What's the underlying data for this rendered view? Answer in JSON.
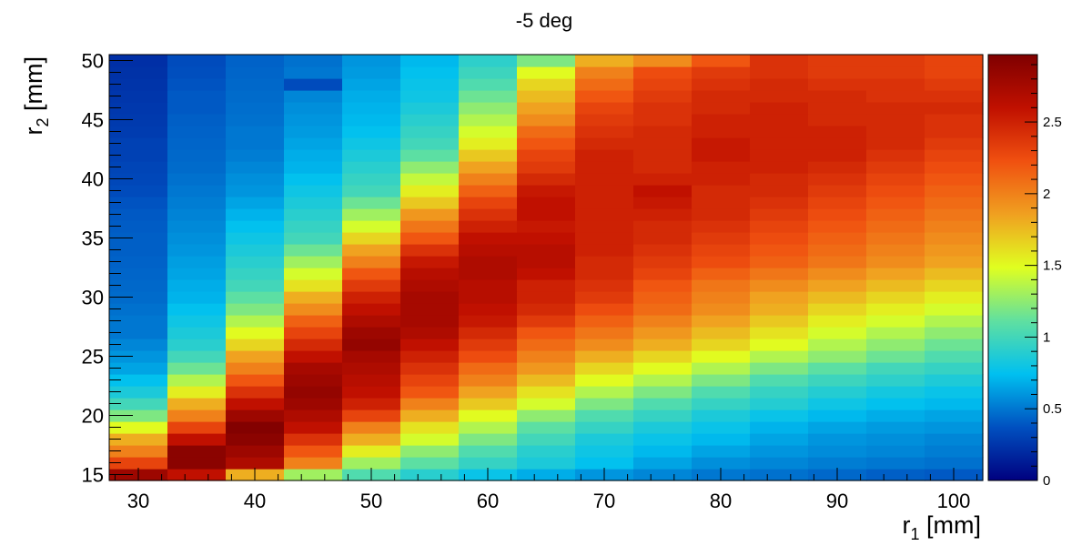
{
  "chart_data": {
    "type": "heatmap",
    "title": "-5 deg",
    "xlabel": {
      "main": "r",
      "sub": "1",
      "unit": " [mm]"
    },
    "ylabel": {
      "main": "r",
      "sub": "2",
      "unit": " [mm]"
    },
    "x_bin_edges": [
      27.5,
      102.5
    ],
    "x_bin_width": 5,
    "x_centers": [
      30,
      35,
      40,
      45,
      50,
      55,
      60,
      65,
      70,
      75,
      80,
      85,
      90,
      95,
      100
    ],
    "y_bin_edges": [
      14.5,
      50.5
    ],
    "y_bin_width": 1,
    "y_centers": [
      15,
      16,
      17,
      18,
      19,
      20,
      21,
      22,
      23,
      24,
      25,
      26,
      27,
      28,
      29,
      30,
      31,
      32,
      33,
      34,
      35,
      36,
      37,
      38,
      39,
      40,
      41,
      42,
      43,
      44,
      45,
      46,
      47,
      48,
      49,
      50
    ],
    "x_ticks": [
      "30",
      "40",
      "50",
      "60",
      "70",
      "80",
      "90",
      "100"
    ],
    "y_ticks": [
      "15",
      "20",
      "25",
      "30",
      "35",
      "40",
      "45",
      "50"
    ],
    "z_range": [
      0,
      2.97
    ],
    "z_ticks": [
      "0",
      "0.5",
      "1",
      "1.5",
      "2",
      "2.5"
    ],
    "colormap": [
      "#00007f",
      "#0050c0",
      "#00c0f0",
      "#60e0a0",
      "#e0ff20",
      "#f0a020",
      "#f05010",
      "#c01000",
      "#7f0000"
    ],
    "grid": false,
    "legend": "colorbar-right",
    "z_values": [
      [
        2.8,
        2.6,
        1.8,
        1.3,
        1.05,
        0.9,
        0.78,
        0.68,
        0.6,
        0.55,
        0.5,
        0.48,
        0.45,
        0.42,
        0.4
      ],
      [
        2.3,
        2.9,
        2.7,
        2.0,
        1.3,
        1.1,
        0.95,
        0.85,
        0.75,
        0.65,
        0.58,
        0.55,
        0.52,
        0.5,
        0.48
      ],
      [
        2.0,
        2.9,
        2.8,
        2.2,
        1.55,
        1.25,
        1.05,
        0.9,
        0.8,
        0.72,
        0.65,
        0.6,
        0.57,
        0.55,
        0.52
      ],
      [
        1.8,
        2.6,
        2.9,
        2.4,
        1.8,
        1.45,
        1.2,
        1.0,
        0.85,
        0.78,
        0.72,
        0.65,
        0.6,
        0.58,
        0.55
      ],
      [
        1.5,
        2.3,
        2.95,
        2.6,
        2.0,
        1.6,
        1.35,
        1.1,
        0.95,
        0.85,
        0.78,
        0.7,
        0.65,
        0.62,
        0.6
      ],
      [
        1.2,
        2.0,
        2.8,
        2.7,
        2.3,
        1.8,
        1.5,
        1.25,
        1.05,
        0.95,
        0.85,
        0.78,
        0.72,
        0.68,
        0.65
      ],
      [
        1.0,
        1.8,
        2.6,
        2.8,
        2.5,
        2.0,
        1.7,
        1.45,
        1.2,
        1.05,
        0.95,
        0.88,
        0.8,
        0.75,
        0.72
      ],
      [
        0.85,
        1.55,
        2.4,
        2.85,
        2.6,
        2.2,
        1.85,
        1.6,
        1.35,
        1.2,
        1.05,
        0.95,
        0.88,
        0.82,
        0.78
      ],
      [
        0.75,
        1.35,
        2.2,
        2.8,
        2.65,
        2.3,
        2.0,
        1.75,
        1.5,
        1.35,
        1.2,
        1.05,
        0.98,
        0.92,
        0.86
      ],
      [
        0.65,
        1.15,
        2.0,
        2.75,
        2.7,
        2.4,
        2.1,
        1.9,
        1.65,
        1.5,
        1.35,
        1.2,
        1.1,
        1.0,
        0.95
      ],
      [
        0.6,
        1.0,
        1.85,
        2.6,
        2.75,
        2.5,
        2.25,
        2.0,
        1.8,
        1.65,
        1.5,
        1.35,
        1.25,
        1.15,
        1.05
      ],
      [
        0.55,
        0.9,
        1.65,
        2.45,
        2.85,
        2.6,
        2.35,
        2.1,
        1.95,
        1.8,
        1.65,
        1.5,
        1.35,
        1.25,
        1.15
      ],
      [
        0.5,
        0.85,
        1.5,
        2.3,
        2.8,
        2.7,
        2.45,
        2.2,
        2.05,
        1.9,
        1.75,
        1.6,
        1.45,
        1.35,
        1.25
      ],
      [
        0.5,
        0.8,
        1.35,
        2.15,
        2.7,
        2.75,
        2.55,
        2.35,
        2.15,
        2.0,
        1.85,
        1.7,
        1.55,
        1.45,
        1.35
      ],
      [
        0.48,
        0.75,
        1.2,
        1.95,
        2.6,
        2.75,
        2.6,
        2.45,
        2.25,
        2.1,
        1.95,
        1.8,
        1.65,
        1.55,
        1.45
      ],
      [
        0.46,
        0.7,
        1.1,
        1.8,
        2.5,
        2.75,
        2.65,
        2.5,
        2.35,
        2.15,
        2.0,
        1.85,
        1.75,
        1.65,
        1.55
      ],
      [
        0.45,
        0.68,
        1.0,
        1.6,
        2.35,
        2.7,
        2.65,
        2.5,
        2.4,
        2.2,
        2.05,
        1.95,
        1.85,
        1.75,
        1.65
      ],
      [
        0.44,
        0.65,
        0.95,
        1.45,
        2.2,
        2.65,
        2.7,
        2.6,
        2.45,
        2.3,
        2.15,
        2.05,
        1.95,
        1.85,
        1.75
      ],
      [
        0.43,
        0.63,
        0.9,
        1.3,
        2.0,
        2.55,
        2.7,
        2.65,
        2.45,
        2.35,
        2.25,
        2.15,
        2.05,
        1.95,
        1.85
      ],
      [
        0.42,
        0.6,
        0.85,
        1.15,
        1.85,
        2.4,
        2.65,
        2.65,
        2.5,
        2.4,
        2.3,
        2.2,
        2.1,
        2.0,
        1.9
      ],
      [
        0.42,
        0.58,
        0.8,
        1.0,
        1.65,
        2.2,
        2.6,
        2.6,
        2.5,
        2.45,
        2.35,
        2.25,
        2.15,
        2.05,
        1.95
      ],
      [
        0.41,
        0.56,
        0.75,
        0.95,
        1.45,
        2.05,
        2.5,
        2.55,
        2.5,
        2.45,
        2.4,
        2.3,
        2.2,
        2.1,
        2.0
      ],
      [
        0.4,
        0.54,
        0.7,
        0.9,
        1.3,
        1.9,
        2.4,
        2.6,
        2.5,
        2.5,
        2.45,
        2.35,
        2.25,
        2.15,
        2.05
      ],
      [
        0.38,
        0.52,
        0.65,
        0.85,
        1.15,
        1.7,
        2.3,
        2.6,
        2.5,
        2.55,
        2.45,
        2.4,
        2.3,
        2.2,
        2.1
      ],
      [
        0.35,
        0.5,
        0.6,
        0.8,
        1.0,
        1.55,
        2.15,
        2.55,
        2.5,
        2.6,
        2.45,
        2.45,
        2.35,
        2.25,
        2.15
      ],
      [
        0.33,
        0.48,
        0.58,
        0.75,
        0.95,
        1.4,
        2.0,
        2.45,
        2.5,
        2.5,
        2.5,
        2.45,
        2.4,
        2.3,
        2.2
      ],
      [
        0.32,
        0.46,
        0.55,
        0.7,
        0.9,
        1.25,
        1.85,
        2.35,
        2.5,
        2.45,
        2.5,
        2.5,
        2.45,
        2.35,
        2.25
      ],
      [
        0.3,
        0.45,
        0.52,
        0.68,
        0.85,
        1.1,
        1.7,
        2.3,
        2.5,
        2.45,
        2.55,
        2.5,
        2.5,
        2.4,
        2.3
      ],
      [
        0.3,
        0.44,
        0.5,
        0.65,
        0.8,
        1.0,
        1.55,
        2.2,
        2.45,
        2.45,
        2.55,
        2.5,
        2.5,
        2.45,
        2.35
      ],
      [
        0.28,
        0.43,
        0.5,
        0.62,
        0.75,
        0.95,
        1.45,
        2.1,
        2.4,
        2.45,
        2.5,
        2.5,
        2.5,
        2.45,
        2.4
      ],
      [
        0.27,
        0.42,
        0.48,
        0.6,
        0.72,
        0.9,
        1.35,
        1.95,
        2.35,
        2.4,
        2.5,
        2.5,
        2.45,
        2.45,
        2.4
      ],
      [
        0.26,
        0.4,
        0.47,
        0.58,
        0.7,
        0.85,
        1.25,
        1.85,
        2.3,
        2.4,
        2.45,
        2.5,
        2.45,
        2.45,
        2.45
      ],
      [
        0.25,
        0.4,
        0.46,
        0.55,
        0.68,
        0.8,
        1.15,
        1.75,
        2.2,
        2.35,
        2.45,
        2.45,
        2.45,
        2.4,
        2.4
      ],
      [
        0.24,
        0.38,
        0.45,
        0.35,
        0.65,
        0.78,
        1.05,
        1.65,
        2.1,
        2.3,
        2.4,
        2.45,
        2.4,
        2.4,
        2.35
      ],
      [
        0.23,
        0.36,
        0.44,
        0.5,
        0.62,
        0.75,
        0.98,
        1.5,
        2.0,
        2.25,
        2.35,
        2.4,
        2.35,
        2.35,
        2.3
      ],
      [
        0.22,
        0.35,
        0.43,
        0.48,
        0.6,
        0.72,
        0.92,
        1.2,
        1.8,
        1.95,
        2.2,
        2.4,
        2.35,
        2.35,
        2.3
      ]
    ]
  }
}
